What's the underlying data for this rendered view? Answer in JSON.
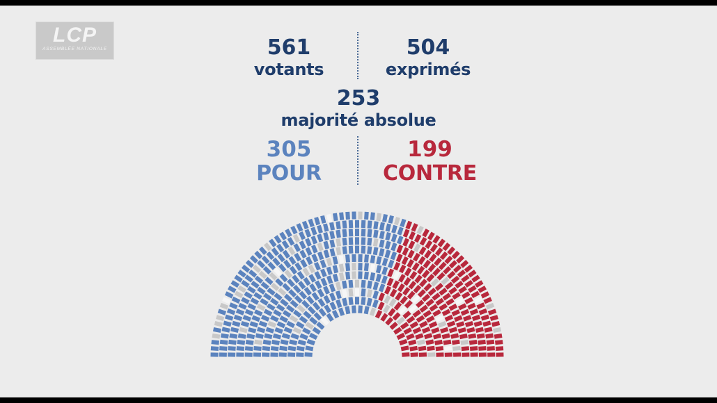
{
  "logo": {
    "text": "LCP",
    "subtitle": "ASSEMBLÉE NATIONALE"
  },
  "votes": {
    "votants": {
      "value": "561",
      "label": "votants"
    },
    "exprimes": {
      "value": "504",
      "label": "exprimés"
    },
    "majorite": {
      "value": "253",
      "label": "majorité absolue"
    },
    "pour": {
      "value": "305",
      "label": "POUR"
    },
    "contre": {
      "value": "199",
      "label": "CONTRE"
    }
  },
  "colors": {
    "background": "#ececec",
    "text_primary": "#1f3d6b",
    "pour": "#5b83be",
    "contre": "#b8283c",
    "abstention": "#c8c8c8",
    "absent": "#f6f6f6"
  },
  "hemicycle": {
    "total_seats": 577,
    "pour": 305,
    "contre": 199,
    "abstention": 57,
    "non_votants": 16
  }
}
